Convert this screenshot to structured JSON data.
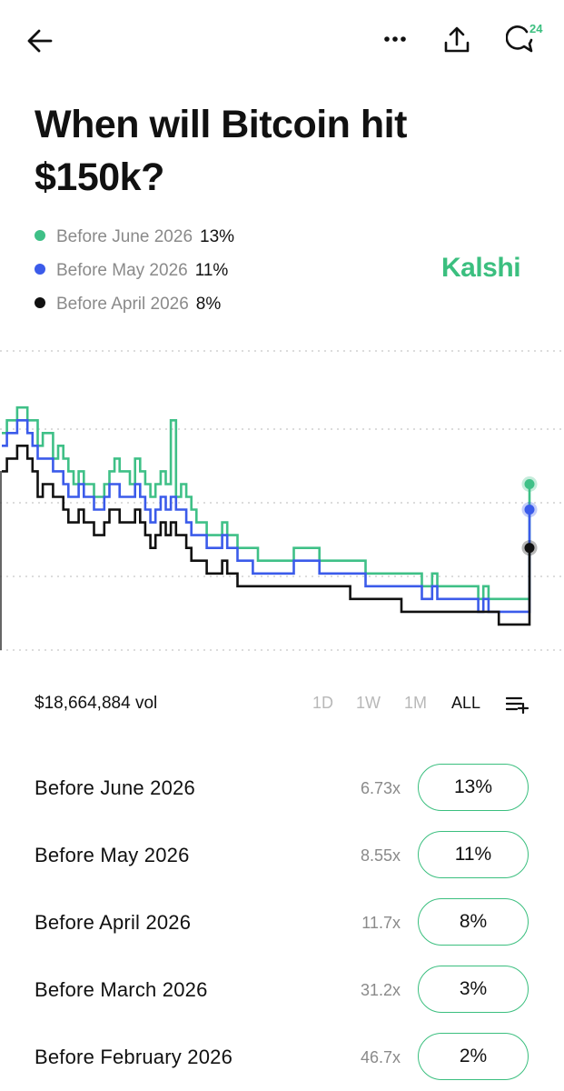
{
  "header": {
    "back_icon": "arrow-left-icon",
    "more_icon": "ellipsis-icon",
    "share_icon": "share-upload-icon",
    "comments_icon": "comment-bubble-icon",
    "comments_count": "24"
  },
  "market": {
    "title": "When will Bitcoin hit $150k?",
    "brand": "Kalshi",
    "brand_color": "#3bbf7f"
  },
  "legend": [
    {
      "label": "Before June 2026",
      "value": "13%",
      "color": "#3fc087"
    },
    {
      "label": "Before May 2026",
      "value": "11%",
      "color": "#3b5bea"
    },
    {
      "label": "Before April 2026",
      "value": "8%",
      "color": "#111111"
    }
  ],
  "chart_data": {
    "type": "line",
    "step": true,
    "gridlines": "dotted",
    "series": [
      {
        "name": "Before June 2026",
        "color": "#3fc087",
        "values": [
          17,
          18,
          18,
          19,
          19,
          18,
          18,
          16,
          17,
          17,
          15,
          16,
          15,
          14,
          13,
          14,
          13,
          13,
          12,
          12,
          13,
          14,
          15,
          14,
          14,
          13,
          15,
          14,
          13,
          12,
          13,
          14,
          13,
          18,
          12,
          13,
          12,
          11,
          10,
          10,
          9,
          9,
          9,
          10,
          9,
          9,
          8,
          8,
          8,
          8,
          7,
          7,
          7,
          7,
          7,
          7,
          7,
          8,
          8,
          8,
          8,
          8,
          7,
          7,
          7,
          7,
          7,
          7,
          7,
          7,
          7,
          6,
          6,
          6,
          6,
          6,
          6,
          6,
          6,
          6,
          6,
          6,
          5,
          5,
          6,
          5,
          5,
          5,
          5,
          5,
          5,
          5,
          5,
          4,
          5,
          4,
          4,
          4,
          4,
          4,
          4,
          4,
          4,
          13
        ]
      },
      {
        "name": "Before May 2026",
        "color": "#3b5bea",
        "values": [
          16,
          17,
          17,
          18,
          18,
          17,
          16,
          15,
          15,
          15,
          14,
          14,
          13,
          12,
          12,
          13,
          12,
          12,
          11,
          11,
          12,
          13,
          13,
          12,
          12,
          12,
          13,
          12,
          11,
          10,
          11,
          12,
          11,
          12,
          11,
          11,
          10,
          9,
          9,
          9,
          8,
          8,
          8,
          9,
          8,
          8,
          7,
          7,
          7,
          6,
          6,
          6,
          6,
          6,
          6,
          6,
          6,
          7,
          7,
          7,
          7,
          7,
          6,
          6,
          6,
          6,
          6,
          6,
          6,
          6,
          6,
          5,
          5,
          5,
          5,
          5,
          5,
          5,
          5,
          5,
          5,
          5,
          4,
          4,
          5,
          4,
          4,
          4,
          4,
          4,
          4,
          4,
          4,
          3,
          4,
          3,
          3,
          3,
          3,
          3,
          3,
          3,
          3,
          11
        ]
      },
      {
        "name": "Before April 2026",
        "color": "#111111",
        "values": [
          14,
          15,
          15,
          16,
          16,
          15,
          14,
          12,
          13,
          13,
          12,
          12,
          11,
          10,
          10,
          11,
          10,
          10,
          9,
          9,
          10,
          11,
          11,
          10,
          10,
          10,
          11,
          10,
          9,
          8,
          9,
          10,
          9,
          10,
          9,
          9,
          8,
          7,
          7,
          7,
          6,
          6,
          6,
          7,
          6,
          6,
          5,
          5,
          5,
          5,
          5,
          5,
          5,
          5,
          5,
          5,
          5,
          5,
          5,
          5,
          5,
          5,
          5,
          5,
          5,
          5,
          5,
          5,
          4,
          4,
          4,
          4,
          4,
          4,
          4,
          4,
          4,
          4,
          3,
          3,
          3,
          3,
          3,
          3,
          3,
          3,
          3,
          3,
          3,
          3,
          3,
          3,
          3,
          3,
          3,
          3,
          3,
          2,
          2,
          2,
          2,
          2,
          2,
          8
        ]
      }
    ],
    "ylim": [
      0,
      24
    ]
  },
  "controls": {
    "volume": "$18,664,884 vol",
    "ranges": [
      "1D",
      "1W",
      "1M",
      "ALL"
    ],
    "active_range": "ALL",
    "list_icon": "list-add-icon"
  },
  "outcomes": [
    {
      "label": "Before June 2026",
      "multiplier": "6.73x",
      "price": "13%"
    },
    {
      "label": "Before May 2026",
      "multiplier": "8.55x",
      "price": "11%"
    },
    {
      "label": "Before April 2026",
      "multiplier": "11.7x",
      "price": "8%"
    },
    {
      "label": "Before March 2026",
      "multiplier": "31.2x",
      "price": "3%"
    },
    {
      "label": "Before February 2026",
      "multiplier": "46.7x",
      "price": "2%"
    }
  ]
}
